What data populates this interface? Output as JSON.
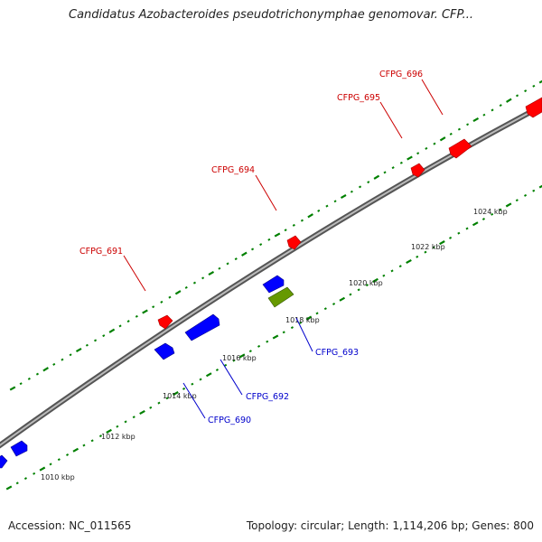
{
  "title": "Candidatus Azobacteroides pseudotrichonymphae genomovar. CFP...",
  "footer": {
    "accession": "Accession: NC_011565",
    "summary": "Topology: circular; Length: 1,114,206 bp; Genes: 800"
  },
  "colors": {
    "forward_gene": "#ff0000",
    "reverse_gene": "#0000ff",
    "rna_gene": "#669900",
    "backbone": "#888888",
    "ticks": "#008000",
    "forward_label": "#cc0000",
    "reverse_label": "#0000cc"
  },
  "scale": {
    "ticks": [
      {
        "label": "1010 kbp"
      },
      {
        "label": "1012 kbp"
      },
      {
        "label": "1014 kbp"
      },
      {
        "label": "1016 kbp"
      },
      {
        "label": "1018 kbp"
      },
      {
        "label": "1020 kbp"
      },
      {
        "label": "1022 kbp"
      },
      {
        "label": "1024 kbp"
      }
    ]
  },
  "genes": [
    {
      "name": "CFPG_690",
      "strand": "reverse",
      "labeled": true
    },
    {
      "name": "CFPG_691",
      "strand": "forward",
      "labeled": true
    },
    {
      "name": "CFPG_692",
      "strand": "reverse",
      "labeled": true
    },
    {
      "name": "CFPG_693",
      "strand": "rna",
      "labeled": true
    },
    {
      "name": "CFPG_694",
      "strand": "forward",
      "labeled": true
    },
    {
      "name": "CFPG_695",
      "strand": "forward",
      "labeled": true
    },
    {
      "name": "CFPG_696",
      "strand": "forward",
      "labeled": true
    }
  ]
}
